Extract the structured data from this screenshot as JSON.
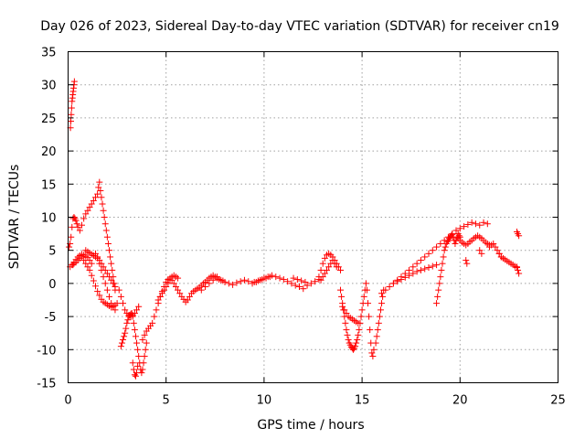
{
  "chart_data": {
    "type": "scatter",
    "title": "Day 026 of 2023, Sidereal Day-to-day VTEC variation (SDTVAR) for receiver cn19",
    "xlabel": "GPS time / hours",
    "ylabel": "SDTVAR / TECUs",
    "xlim": [
      0,
      25
    ],
    "ylim": [
      -15,
      35
    ],
    "xticks": [
      0,
      5,
      10,
      15,
      20,
      25
    ],
    "yticks": [
      -15,
      -10,
      -5,
      0,
      5,
      10,
      15,
      20,
      25,
      30,
      35
    ],
    "xtick_labels": [
      "0",
      "5",
      "10",
      "15",
      "20",
      "25"
    ],
    "ytick_labels": [
      "-15",
      "-10",
      "-5",
      "0",
      "5",
      "10",
      "15",
      "20",
      "25",
      "30",
      "35"
    ],
    "grid": true,
    "marker": "+",
    "color": "#ff0000",
    "series": [
      {
        "name": "SDTVAR",
        "x": [
          0.12,
          0.14,
          0.16,
          0.18,
          0.2,
          0.22,
          0.24,
          0.26,
          0.28,
          0.3,
          0.32,
          0.05,
          0.1,
          0.15,
          0.2,
          0.25,
          0.3,
          0.35,
          0.4,
          0.45,
          0.5,
          0.6,
          0.7,
          0.8,
          0.9,
          1.0,
          1.1,
          1.2,
          1.3,
          1.4,
          1.5,
          1.55,
          1.6,
          1.65,
          1.7,
          1.75,
          1.8,
          1.85,
          1.9,
          1.95,
          2.0,
          2.05,
          2.1,
          2.15,
          2.2,
          2.25,
          2.3,
          2.35,
          2.4,
          0.1,
          0.2,
          0.3,
          0.4,
          0.5,
          0.6,
          0.7,
          0.8,
          0.9,
          1.0,
          1.1,
          1.2,
          0.9,
          1.0,
          1.1,
          1.2,
          1.3,
          1.4,
          1.5,
          1.6,
          1.7,
          1.8,
          1.9,
          2.0,
          2.1,
          2.2,
          2.3,
          2.4,
          0.25,
          0.3,
          0.4,
          0.5,
          0.6,
          0.7,
          0.8,
          0.9,
          1.0,
          1.1,
          1.2,
          1.3,
          1.4,
          1.5,
          1.6,
          1.7,
          1.8,
          1.9,
          2.0,
          2.1,
          2.2,
          2.3,
          2.4,
          2.5,
          1.4,
          1.5,
          1.6,
          1.7,
          1.8,
          1.9,
          2.0,
          2.1,
          2.2,
          2.3,
          2.4,
          2.7,
          2.75,
          2.8,
          2.85,
          2.9,
          2.95,
          3.0,
          3.05,
          3.1,
          3.15,
          3.2,
          3.25,
          3.3,
          3.35,
          3.4,
          3.45,
          3.5,
          3.55,
          3.6,
          3.65,
          3.7,
          3.75,
          3.8,
          3.85,
          3.9,
          3.95,
          4.0,
          3.3,
          3.35,
          3.4,
          3.45,
          3.5,
          3.55,
          2.6,
          2.7,
          2.8,
          2.9,
          3.0,
          3.1,
          3.2,
          3.3,
          3.4,
          3.5,
          3.6,
          3.8,
          3.9,
          4.0,
          4.1,
          4.2,
          4.3,
          4.4,
          4.5,
          4.6,
          4.7,
          4.8,
          4.9,
          5.0,
          5.1,
          5.2,
          5.3,
          5.4,
          5.5,
          5.6,
          5.7,
          5.8,
          5.9,
          6.0,
          4.6,
          4.7,
          4.8,
          4.9,
          5.0,
          5.1,
          5.2,
          5.3,
          5.4,
          5.5,
          5.6,
          6.1,
          6.2,
          6.3,
          6.4,
          6.5,
          6.6,
          6.7,
          6.8,
          6.9,
          7.0,
          7.1,
          7.2,
          7.3,
          7.4,
          7.5,
          7.6,
          7.7,
          7.8,
          7.9,
          8.0,
          8.2,
          8.4,
          8.6,
          8.8,
          9.0,
          9.2,
          9.4,
          9.6,
          9.8,
          10.0,
          10.2,
          10.4,
          10.6,
          10.8,
          11.0,
          11.2,
          11.4,
          11.6,
          11.8,
          12.0,
          12.2,
          12.4,
          12.6,
          12.8,
          6.8,
          7.0,
          7.2,
          7.4,
          7.6,
          9.5,
          9.7,
          9.9,
          10.1,
          10.3,
          11.5,
          11.7,
          11.9,
          12.1,
          12.8,
          12.9,
          13.0,
          13.1,
          13.2,
          13.3,
          13.4,
          13.5,
          13.6,
          13.7,
          13.8,
          13.9,
          12.9,
          13.0,
          13.1,
          13.2,
          13.3,
          13.4,
          13.5,
          13.6,
          13.7,
          13.9,
          13.95,
          14.0,
          14.05,
          14.1,
          14.15,
          14.2,
          14.25,
          14.3,
          14.35,
          14.4,
          14.45,
          14.5,
          14.55,
          14.6,
          14.65,
          14.7,
          14.75,
          14.8,
          14.85,
          14.9,
          14.95,
          15.0,
          15.05,
          15.1,
          15.15,
          15.2,
          15.25,
          15.3,
          15.35,
          15.4,
          15.45,
          15.5,
          15.55,
          15.6,
          14.0,
          14.1,
          14.2,
          14.3,
          14.4,
          14.5,
          14.6,
          14.7,
          14.8,
          15.7,
          15.75,
          15.8,
          15.85,
          15.9,
          15.95,
          16.0,
          16.05,
          16.1,
          16.0,
          16.2,
          16.4,
          16.6,
          16.8,
          17.0,
          17.2,
          17.4,
          17.6,
          17.8,
          18.0,
          18.2,
          18.4,
          18.6,
          18.8,
          19.0,
          19.2,
          19.4,
          19.6,
          19.8,
          20.0,
          20.2,
          20.4,
          20.6,
          20.8,
          21.0,
          21.2,
          21.4,
          16.6,
          16.8,
          17.0,
          17.2,
          17.4,
          17.6,
          17.8,
          18.0,
          18.2,
          18.4,
          18.6,
          18.8,
          18.8,
          18.85,
          18.9,
          18.95,
          19.0,
          19.05,
          19.1,
          19.15,
          19.2,
          19.25,
          19.3,
          19.35,
          19.4,
          19.45,
          19.5,
          19.55,
          19.6,
          19.65,
          19.7,
          19.75,
          19.8,
          19.85,
          19.9,
          19.95,
          20.0,
          19.9,
          20.0,
          20.1,
          20.2,
          20.3,
          20.4,
          20.5,
          20.6,
          20.7,
          20.8,
          20.9,
          21.0,
          21.1,
          21.2,
          21.3,
          21.4,
          21.5,
          21.5,
          21.6,
          21.7,
          21.8,
          21.9,
          22.0,
          22.1,
          22.2,
          22.3,
          22.4,
          22.5,
          22.6,
          22.7,
          22.8,
          22.9,
          20.3,
          20.35,
          21.0,
          21.1,
          22.0,
          22.1,
          22.9,
          22.95,
          23.0,
          22.9,
          22.95,
          23.0
        ],
        "y": [
          23.5,
          24.5,
          25.5,
          26.5,
          27.5,
          28.0,
          28.5,
          29.0,
          29.5,
          30.0,
          30.5,
          5.5,
          6.0,
          7.0,
          8.5,
          9.8,
          10.0,
          9.8,
          9.5,
          9.0,
          8.5,
          8.0,
          8.8,
          9.8,
          10.5,
          11.0,
          11.5,
          12.0,
          12.5,
          13.0,
          13.5,
          14.5,
          15.3,
          14.0,
          13.0,
          12.0,
          11.0,
          10.0,
          9.0,
          8.0,
          7.0,
          6.0,
          5.0,
          4.0,
          3.0,
          2.0,
          1.0,
          0.0,
          -1.0,
          2.5,
          2.8,
          3.2,
          3.6,
          4.0,
          4.2,
          4.4,
          4.3,
          4.1,
          3.9,
          3.5,
          3.0,
          5.0,
          4.8,
          4.6,
          4.4,
          4.2,
          4.0,
          3.8,
          3.5,
          3.0,
          2.5,
          2.0,
          1.5,
          1.0,
          0.5,
          0.0,
          -0.5,
          2.8,
          3.0,
          3.2,
          3.5,
          3.8,
          4.0,
          3.5,
          3.0,
          2.5,
          2.0,
          1.2,
          0.4,
          -0.4,
          -1.2,
          -1.8,
          -2.4,
          -2.8,
          -3.0,
          -3.2,
          -3.4,
          -3.6,
          -3.5,
          -3.3,
          -3.0,
          4.5,
          4.0,
          3.0,
          2.0,
          1.0,
          0.0,
          -1.0,
          -2.0,
          -3.0,
          -3.5,
          -4.0,
          -9.5,
          -9.0,
          -8.5,
          -8.0,
          -7.5,
          -6.8,
          -6.0,
          -5.5,
          -5.0,
          -4.8,
          -4.6,
          -4.5,
          -5.0,
          -6.0,
          -7.0,
          -8.0,
          -9.0,
          -10.0,
          -11.0,
          -12.0,
          -13.0,
          -13.5,
          -13.0,
          -12.0,
          -11.0,
          -10.0,
          -9.0,
          -12.0,
          -13.0,
          -13.8,
          -14.0,
          -13.5,
          -12.5,
          -1.0,
          -2.0,
          -3.0,
          -4.0,
          -4.5,
          -4.8,
          -5.0,
          -4.8,
          -4.5,
          -4.0,
          -3.5,
          -8.5,
          -7.8,
          -7.2,
          -6.8,
          -6.4,
          -6.0,
          -5.0,
          -4.0,
          -3.0,
          -2.0,
          -1.2,
          -0.5,
          0.2,
          0.6,
          0.8,
          0.5,
          0.0,
          -0.5,
          -1.0,
          -1.5,
          -2.0,
          -2.4,
          -2.8,
          -2.5,
          -2.0,
          -1.5,
          -1.0,
          -0.5,
          0.0,
          0.5,
          1.0,
          1.2,
          1.0,
          0.8,
          -2.5,
          -2.0,
          -1.5,
          -1.2,
          -1.0,
          -0.8,
          -0.6,
          -0.3,
          0.0,
          0.2,
          0.5,
          0.8,
          1.0,
          1.2,
          1.0,
          0.8,
          0.6,
          0.5,
          0.4,
          0.2,
          0.0,
          -0.2,
          0.1,
          0.3,
          0.5,
          0.3,
          0.0,
          0.2,
          0.5,
          0.8,
          1.0,
          1.2,
          1.0,
          0.8,
          0.6,
          0.3,
          0.0,
          -0.3,
          -0.5,
          -0.8,
          -0.3,
          0.0,
          0.3,
          0.6,
          -1.0,
          -0.5,
          0.0,
          0.5,
          1.0,
          0.2,
          0.4,
          0.6,
          0.8,
          1.0,
          0.8,
          0.6,
          0.4,
          0.2,
          1.0,
          2.0,
          3.0,
          3.8,
          4.3,
          4.5,
          4.3,
          4.0,
          3.5,
          3.0,
          2.5,
          2.0,
          0.5,
          1.0,
          1.5,
          2.0,
          2.5,
          3.0,
          3.5,
          3.0,
          2.5,
          -1.0,
          -2.0,
          -3.0,
          -4.0,
          -5.0,
          -6.0,
          -7.0,
          -7.8,
          -8.5,
          -9.0,
          -9.3,
          -9.6,
          -9.8,
          -10.0,
          -9.8,
          -9.5,
          -9.0,
          -8.5,
          -7.8,
          -7.0,
          -6.0,
          -5.0,
          -4.0,
          -3.0,
          -2.0,
          -1.0,
          0.0,
          -1.0,
          -3.0,
          -5.0,
          -7.0,
          -9.0,
          -10.5,
          -11.0,
          -10.0,
          -3.5,
          -4.0,
          -4.5,
          -5.0,
          -5.2,
          -5.4,
          -5.6,
          -5.8,
          -6.0,
          -9.0,
          -8.0,
          -7.0,
          -6.0,
          -5.0,
          -4.0,
          -3.0,
          -2.0,
          -1.0,
          -1.5,
          -1.0,
          -0.5,
          0.0,
          0.5,
          1.0,
          1.5,
          2.0,
          2.5,
          3.0,
          3.5,
          4.0,
          4.5,
          5.0,
          5.5,
          6.0,
          6.5,
          7.0,
          7.5,
          8.0,
          8.3,
          8.6,
          8.9,
          9.2,
          9.0,
          8.8,
          9.2,
          9.0,
          0.0,
          0.3,
          0.6,
          0.9,
          1.2,
          1.5,
          1.8,
          2.0,
          2.2,
          2.4,
          2.6,
          2.8,
          -3.0,
          -2.0,
          -1.0,
          0.0,
          1.0,
          2.0,
          3.0,
          4.0,
          5.0,
          5.5,
          6.0,
          6.3,
          6.5,
          6.8,
          7.0,
          7.2,
          7.4,
          7.0,
          6.5,
          6.0,
          6.5,
          7.0,
          7.5,
          7.2,
          7.0,
          6.8,
          6.5,
          6.2,
          6.0,
          5.8,
          6.0,
          6.3,
          6.5,
          6.8,
          7.0,
          7.2,
          7.0,
          6.8,
          6.5,
          6.2,
          6.0,
          5.8,
          5.5,
          5.8,
          6.0,
          5.5,
          5.0,
          4.5,
          4.0,
          3.8,
          3.6,
          3.4,
          3.2,
          3.0,
          2.8,
          2.6,
          2.4,
          3.5,
          3.0,
          5.0,
          4.5,
          4.5,
          4.0,
          2.5,
          2.0,
          1.5,
          7.8,
          7.5,
          7.2
        ]
      }
    ]
  }
}
